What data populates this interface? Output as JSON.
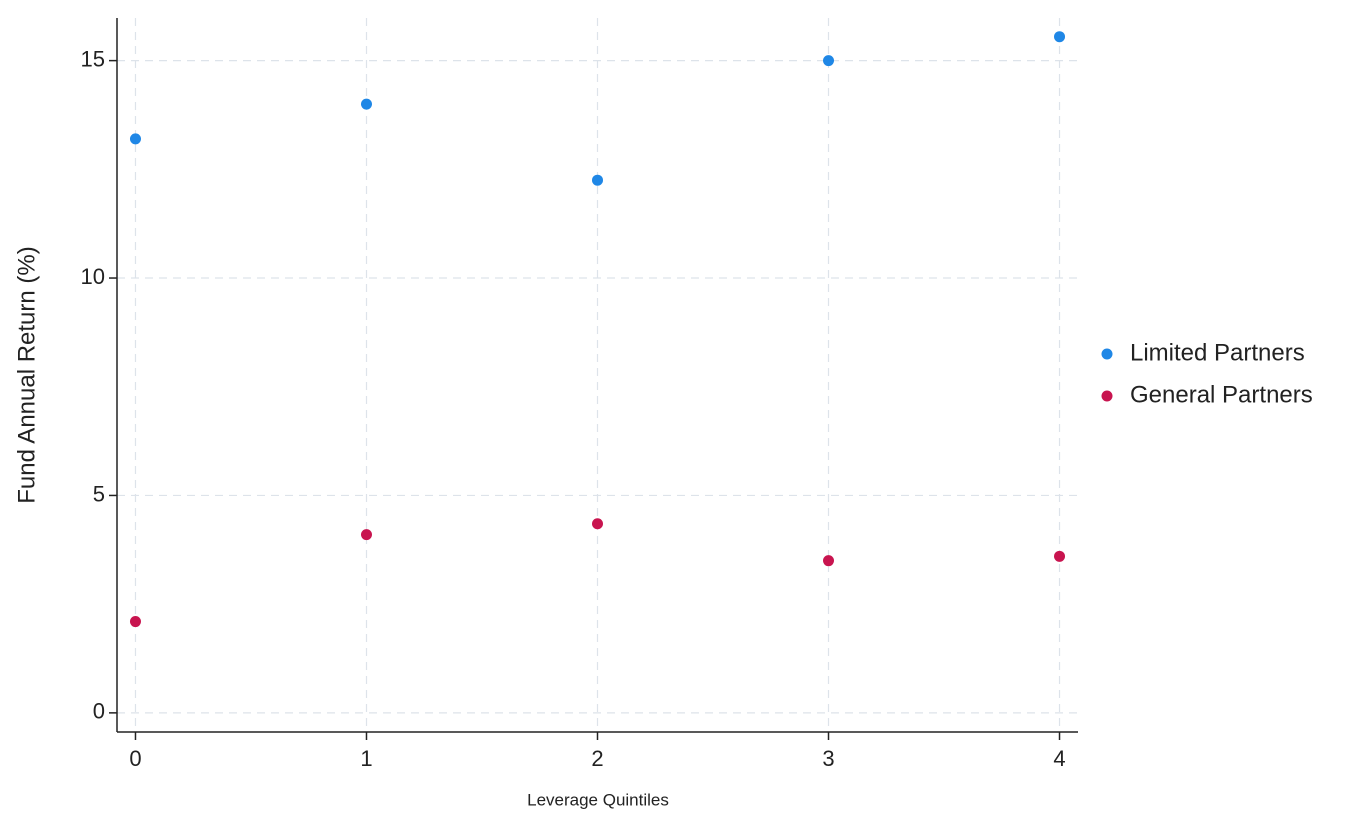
{
  "chart_data": {
    "type": "scatter",
    "x_label": "Leverage Quintiles",
    "y_label": "Fund Annual Return (%)",
    "x": [
      0,
      1,
      2,
      3,
      4
    ],
    "series": [
      {
        "name": "Limited Partners",
        "color": "#1f87e6",
        "values": [
          13.2,
          14.0,
          12.25,
          15.0,
          15.55
        ]
      },
      {
        "name": "General Partners",
        "color": "#c8144f",
        "values": [
          2.1,
          4.1,
          4.35,
          3.5,
          3.6
        ]
      }
    ],
    "xlim": [
      -0.08,
      4.08
    ],
    "xticks": [
      0,
      1,
      2,
      3,
      4
    ],
    "ylim": [
      -0.44,
      15.98
    ],
    "yticks": [
      0,
      5,
      10,
      15
    ],
    "grid": true,
    "legend": "right"
  }
}
